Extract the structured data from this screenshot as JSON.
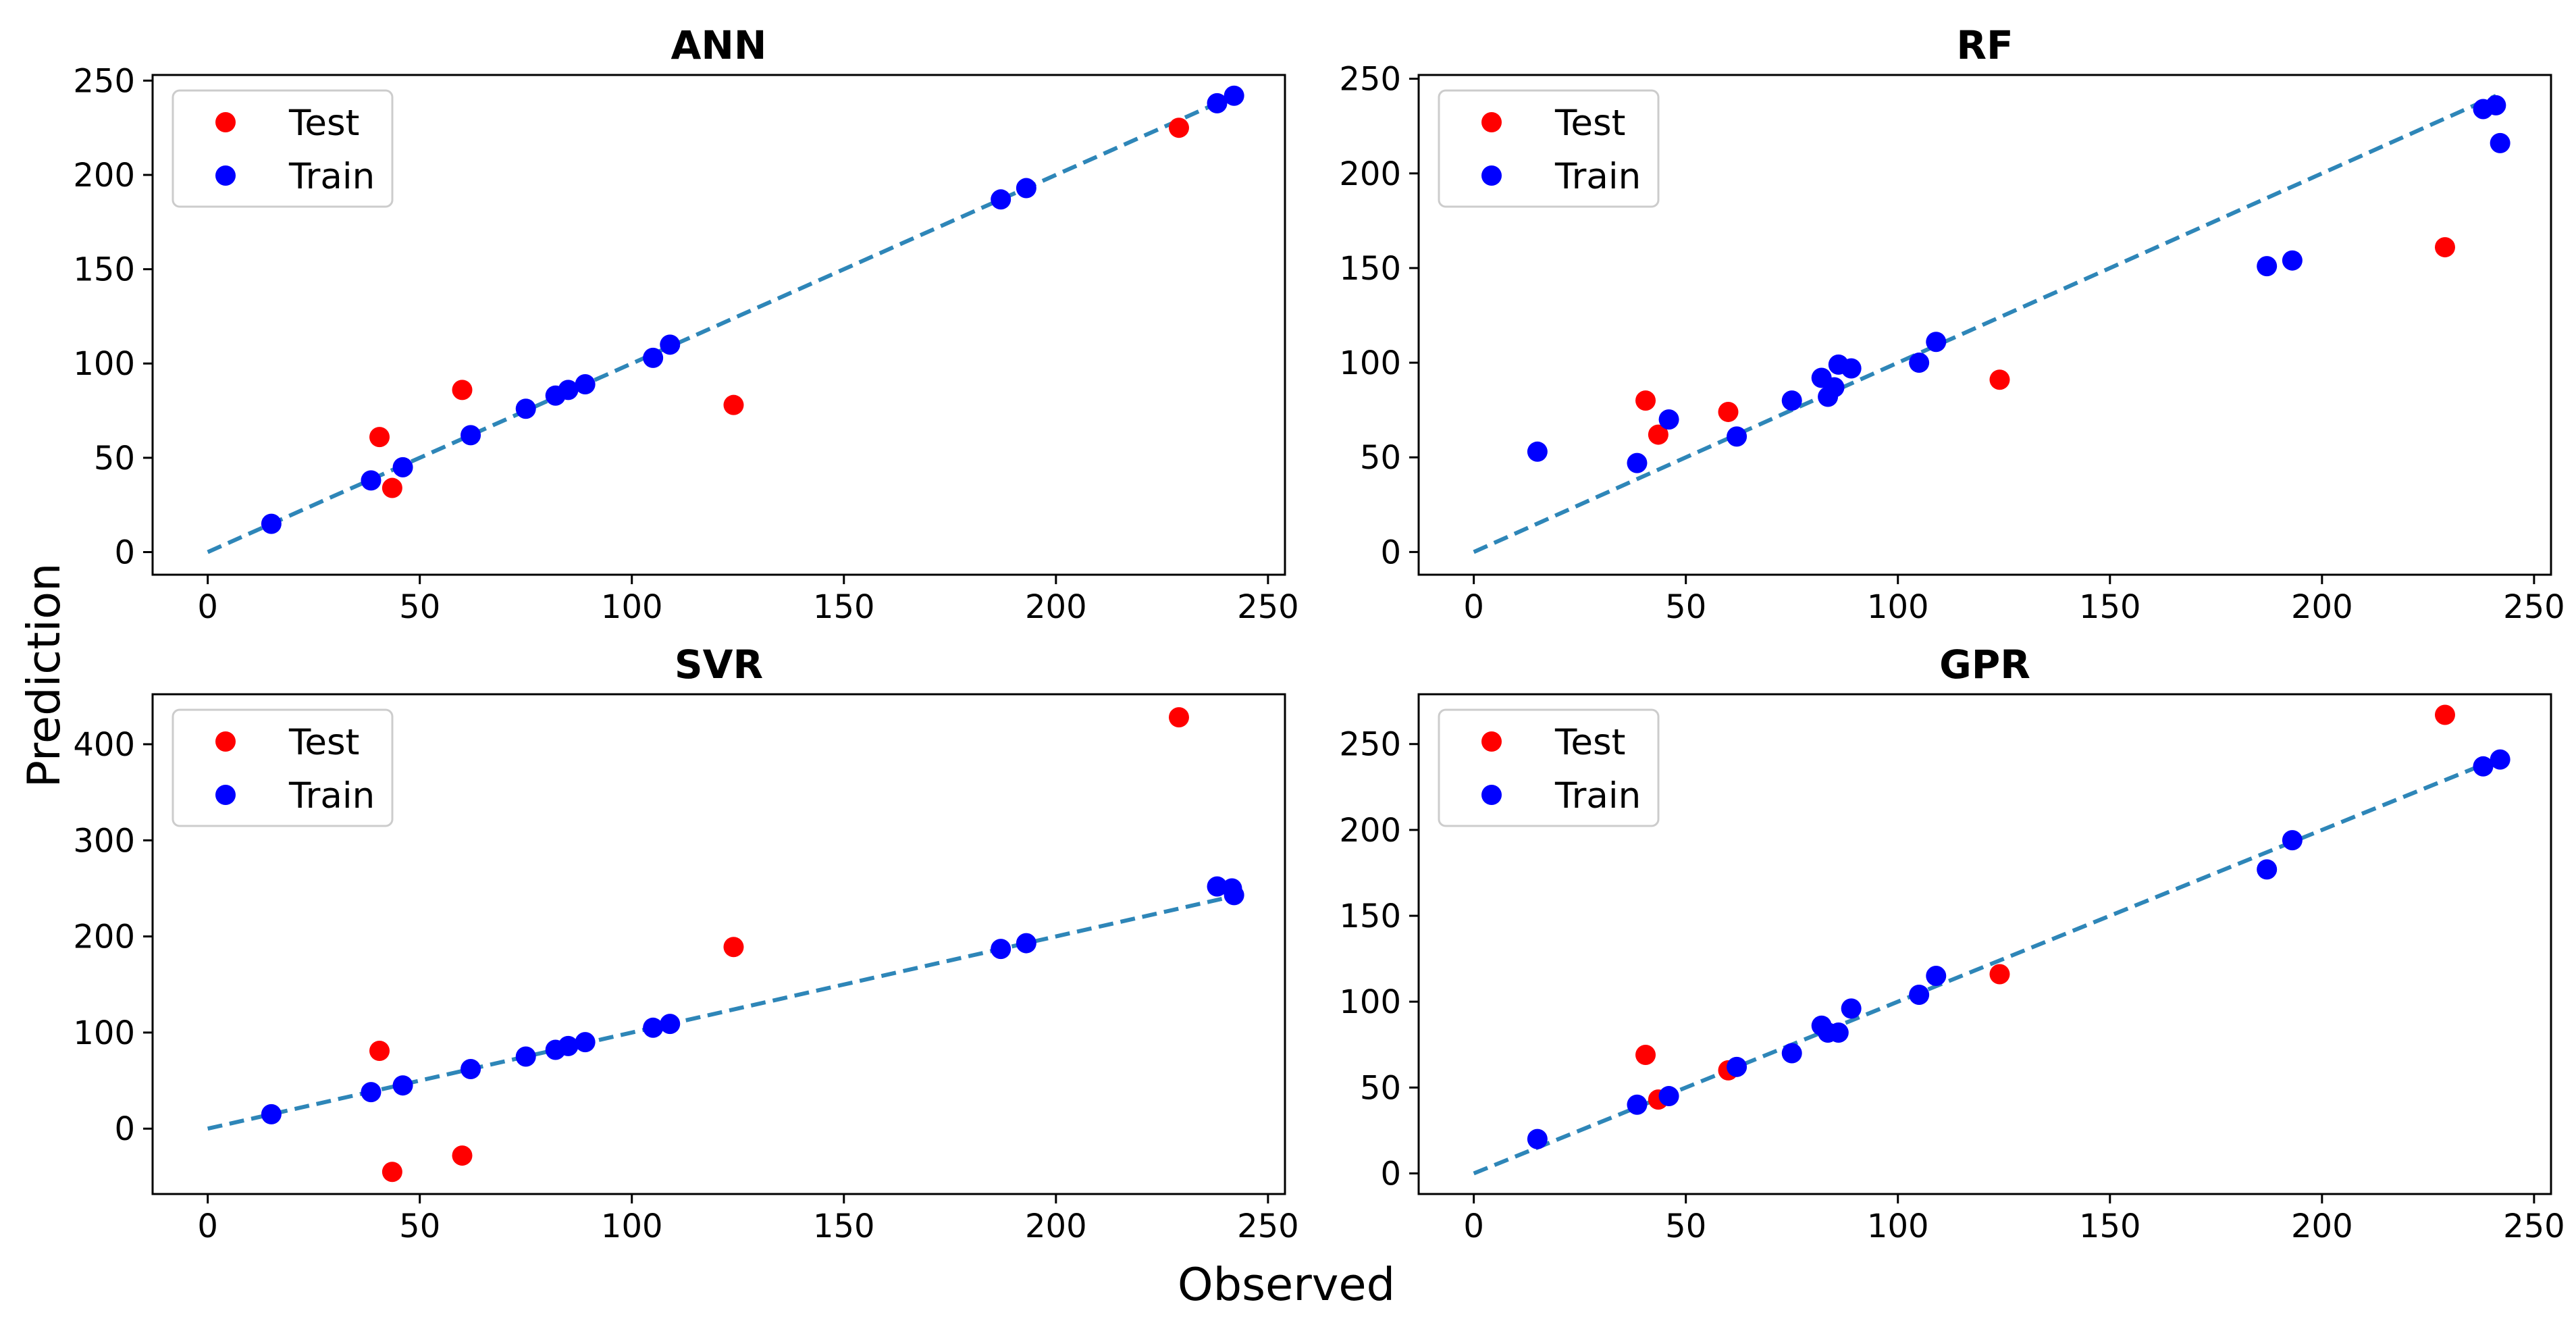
{
  "figure": {
    "xlabel": "Observed",
    "ylabel": "Prediction"
  },
  "colors": {
    "test": "#ff0000",
    "train": "#0000ff",
    "reference_line": "#2e86b8"
  },
  "chart_data": [
    {
      "type": "scatter",
      "title": "ANN",
      "xlabel": "Observed",
      "ylabel": "Prediction",
      "xlim": [
        -13,
        254
      ],
      "ylim": [
        -12,
        253
      ],
      "xticks": [
        0,
        50,
        100,
        150,
        200,
        250
      ],
      "yticks": [
        0,
        50,
        100,
        150,
        200,
        250
      ],
      "legend": {
        "position": "upper-left",
        "entries": [
          "Test",
          "Train"
        ]
      },
      "reference_line": {
        "from": [
          0,
          0
        ],
        "to": [
          241,
          241
        ],
        "style": "dashed"
      },
      "series": [
        {
          "name": "Test",
          "color": "#ff0000",
          "x": [
            40.5,
            43.5,
            60,
            124,
            229
          ],
          "y": [
            61,
            34,
            86,
            78,
            225
          ]
        },
        {
          "name": "Train",
          "color": "#0000ff",
          "x": [
            15,
            38.5,
            46,
            62,
            75,
            82,
            85,
            89,
            105,
            109,
            187,
            193,
            238,
            242
          ],
          "y": [
            15,
            38,
            45,
            62,
            76,
            83,
            86,
            89,
            103,
            110,
            187,
            193,
            238,
            242
          ]
        }
      ]
    },
    {
      "type": "scatter",
      "title": "RF",
      "xlabel": "Observed",
      "ylabel": "Prediction",
      "xlim": [
        -13,
        254
      ],
      "ylim": [
        -12,
        252
      ],
      "xticks": [
        0,
        50,
        100,
        150,
        200,
        250
      ],
      "yticks": [
        0,
        50,
        100,
        150,
        200,
        250
      ],
      "legend": {
        "position": "upper-left",
        "entries": [
          "Test",
          "Train"
        ]
      },
      "reference_line": {
        "from": [
          0,
          0
        ],
        "to": [
          241,
          241
        ],
        "style": "dashed"
      },
      "series": [
        {
          "name": "Test",
          "color": "#ff0000",
          "x": [
            40.5,
            43.5,
            60,
            124,
            229
          ],
          "y": [
            80,
            62,
            74,
            91,
            161
          ]
        },
        {
          "name": "Train",
          "color": "#0000ff",
          "x": [
            15,
            38.5,
            46,
            62,
            75,
            82,
            83.5,
            85,
            86,
            89,
            105,
            109,
            187,
            193,
            238,
            241,
            242
          ],
          "y": [
            53,
            47,
            70,
            61,
            80,
            92,
            82,
            87,
            99,
            97,
            100,
            111,
            151,
            154,
            234,
            236,
            216
          ]
        }
      ]
    },
    {
      "type": "scatter",
      "title": "SVR",
      "xlabel": "Observed",
      "ylabel": "Prediction",
      "xlim": [
        -13,
        254
      ],
      "ylim": [
        -68,
        452
      ],
      "xticks": [
        0,
        50,
        100,
        150,
        200,
        250
      ],
      "yticks": [
        0,
        100,
        200,
        300,
        400
      ],
      "legend": {
        "position": "upper-left",
        "entries": [
          "Test",
          "Train"
        ]
      },
      "reference_line": {
        "from": [
          0,
          0
        ],
        "to": [
          241,
          241
        ],
        "style": "dashed"
      },
      "series": [
        {
          "name": "Test",
          "color": "#ff0000",
          "x": [
            40.5,
            43.5,
            60,
            124,
            229
          ],
          "y": [
            81,
            -45,
            -28,
            189,
            428
          ]
        },
        {
          "name": "Train",
          "color": "#0000ff",
          "x": [
            15,
            38.5,
            46,
            62,
            75,
            82,
            85,
            89,
            105,
            109,
            187,
            193,
            238,
            241.5,
            242
          ],
          "y": [
            15,
            38,
            45,
            62,
            75,
            82,
            86,
            90,
            105,
            109,
            187,
            193,
            252,
            250,
            243
          ]
        }
      ]
    },
    {
      "type": "scatter",
      "title": "GPR",
      "xlabel": "Observed",
      "ylabel": "Prediction",
      "xlim": [
        -13,
        254
      ],
      "ylim": [
        -12,
        279
      ],
      "xticks": [
        0,
        50,
        100,
        150,
        200,
        250
      ],
      "yticks": [
        0,
        50,
        100,
        150,
        200,
        250
      ],
      "legend": {
        "position": "upper-left",
        "entries": [
          "Test",
          "Train"
        ]
      },
      "reference_line": {
        "from": [
          0,
          0
        ],
        "to": [
          241,
          241
        ],
        "style": "dashed"
      },
      "series": [
        {
          "name": "Test",
          "color": "#ff0000",
          "x": [
            40.5,
            43.5,
            60,
            124,
            229
          ],
          "y": [
            69,
            43,
            60,
            116,
            267
          ]
        },
        {
          "name": "Train",
          "color": "#0000ff",
          "x": [
            15,
            38.5,
            46,
            62,
            75,
            82,
            83.5,
            86,
            89,
            105,
            109,
            187,
            193,
            238,
            242
          ],
          "y": [
            20,
            40,
            45,
            62,
            70,
            86,
            82,
            82,
            96,
            104,
            115,
            177,
            194,
            237,
            241
          ]
        }
      ]
    }
  ]
}
